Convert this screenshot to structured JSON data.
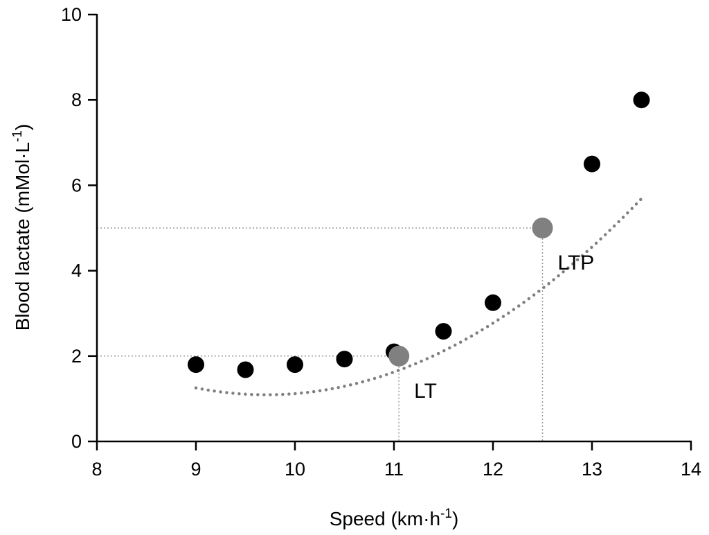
{
  "chart_data": {
    "type": "scatter",
    "xlabel": "Speed (km·h",
    "xlabel_sup": "-1",
    "xlabel_end": ")",
    "ylabel": "Blood lactate (mMol·L",
    "ylabel_sup": "-1",
    "ylabel_end": ")",
    "xlim": [
      8,
      14
    ],
    "ylim": [
      0,
      10
    ],
    "xticks": [
      8,
      9,
      10,
      11,
      12,
      13,
      14
    ],
    "yticks": [
      0,
      2,
      4,
      6,
      8,
      10
    ],
    "grid": false,
    "series": [
      {
        "x": [
          9,
          9.5,
          10,
          10.5,
          11,
          11.5,
          12,
          13,
          13.5
        ],
        "y": [
          1.8,
          1.68,
          1.8,
          1.93,
          2.1,
          2.58,
          3.25,
          6.5,
          8.0
        ],
        "color": "#000000"
      }
    ],
    "fit_curve": {
      "style": "dotted",
      "color": "#7f7f7f",
      "x_range": [
        9,
        13.5
      ],
      "coefficients": [
        31.23,
        -6.208,
        0.3197
      ]
    },
    "annotations": [
      {
        "label": "LT",
        "x": 11.05,
        "y": 2.0,
        "color": "#808080"
      },
      {
        "label": "LTP",
        "x": 12.5,
        "y": 5.0,
        "color": "#808080"
      }
    ]
  }
}
